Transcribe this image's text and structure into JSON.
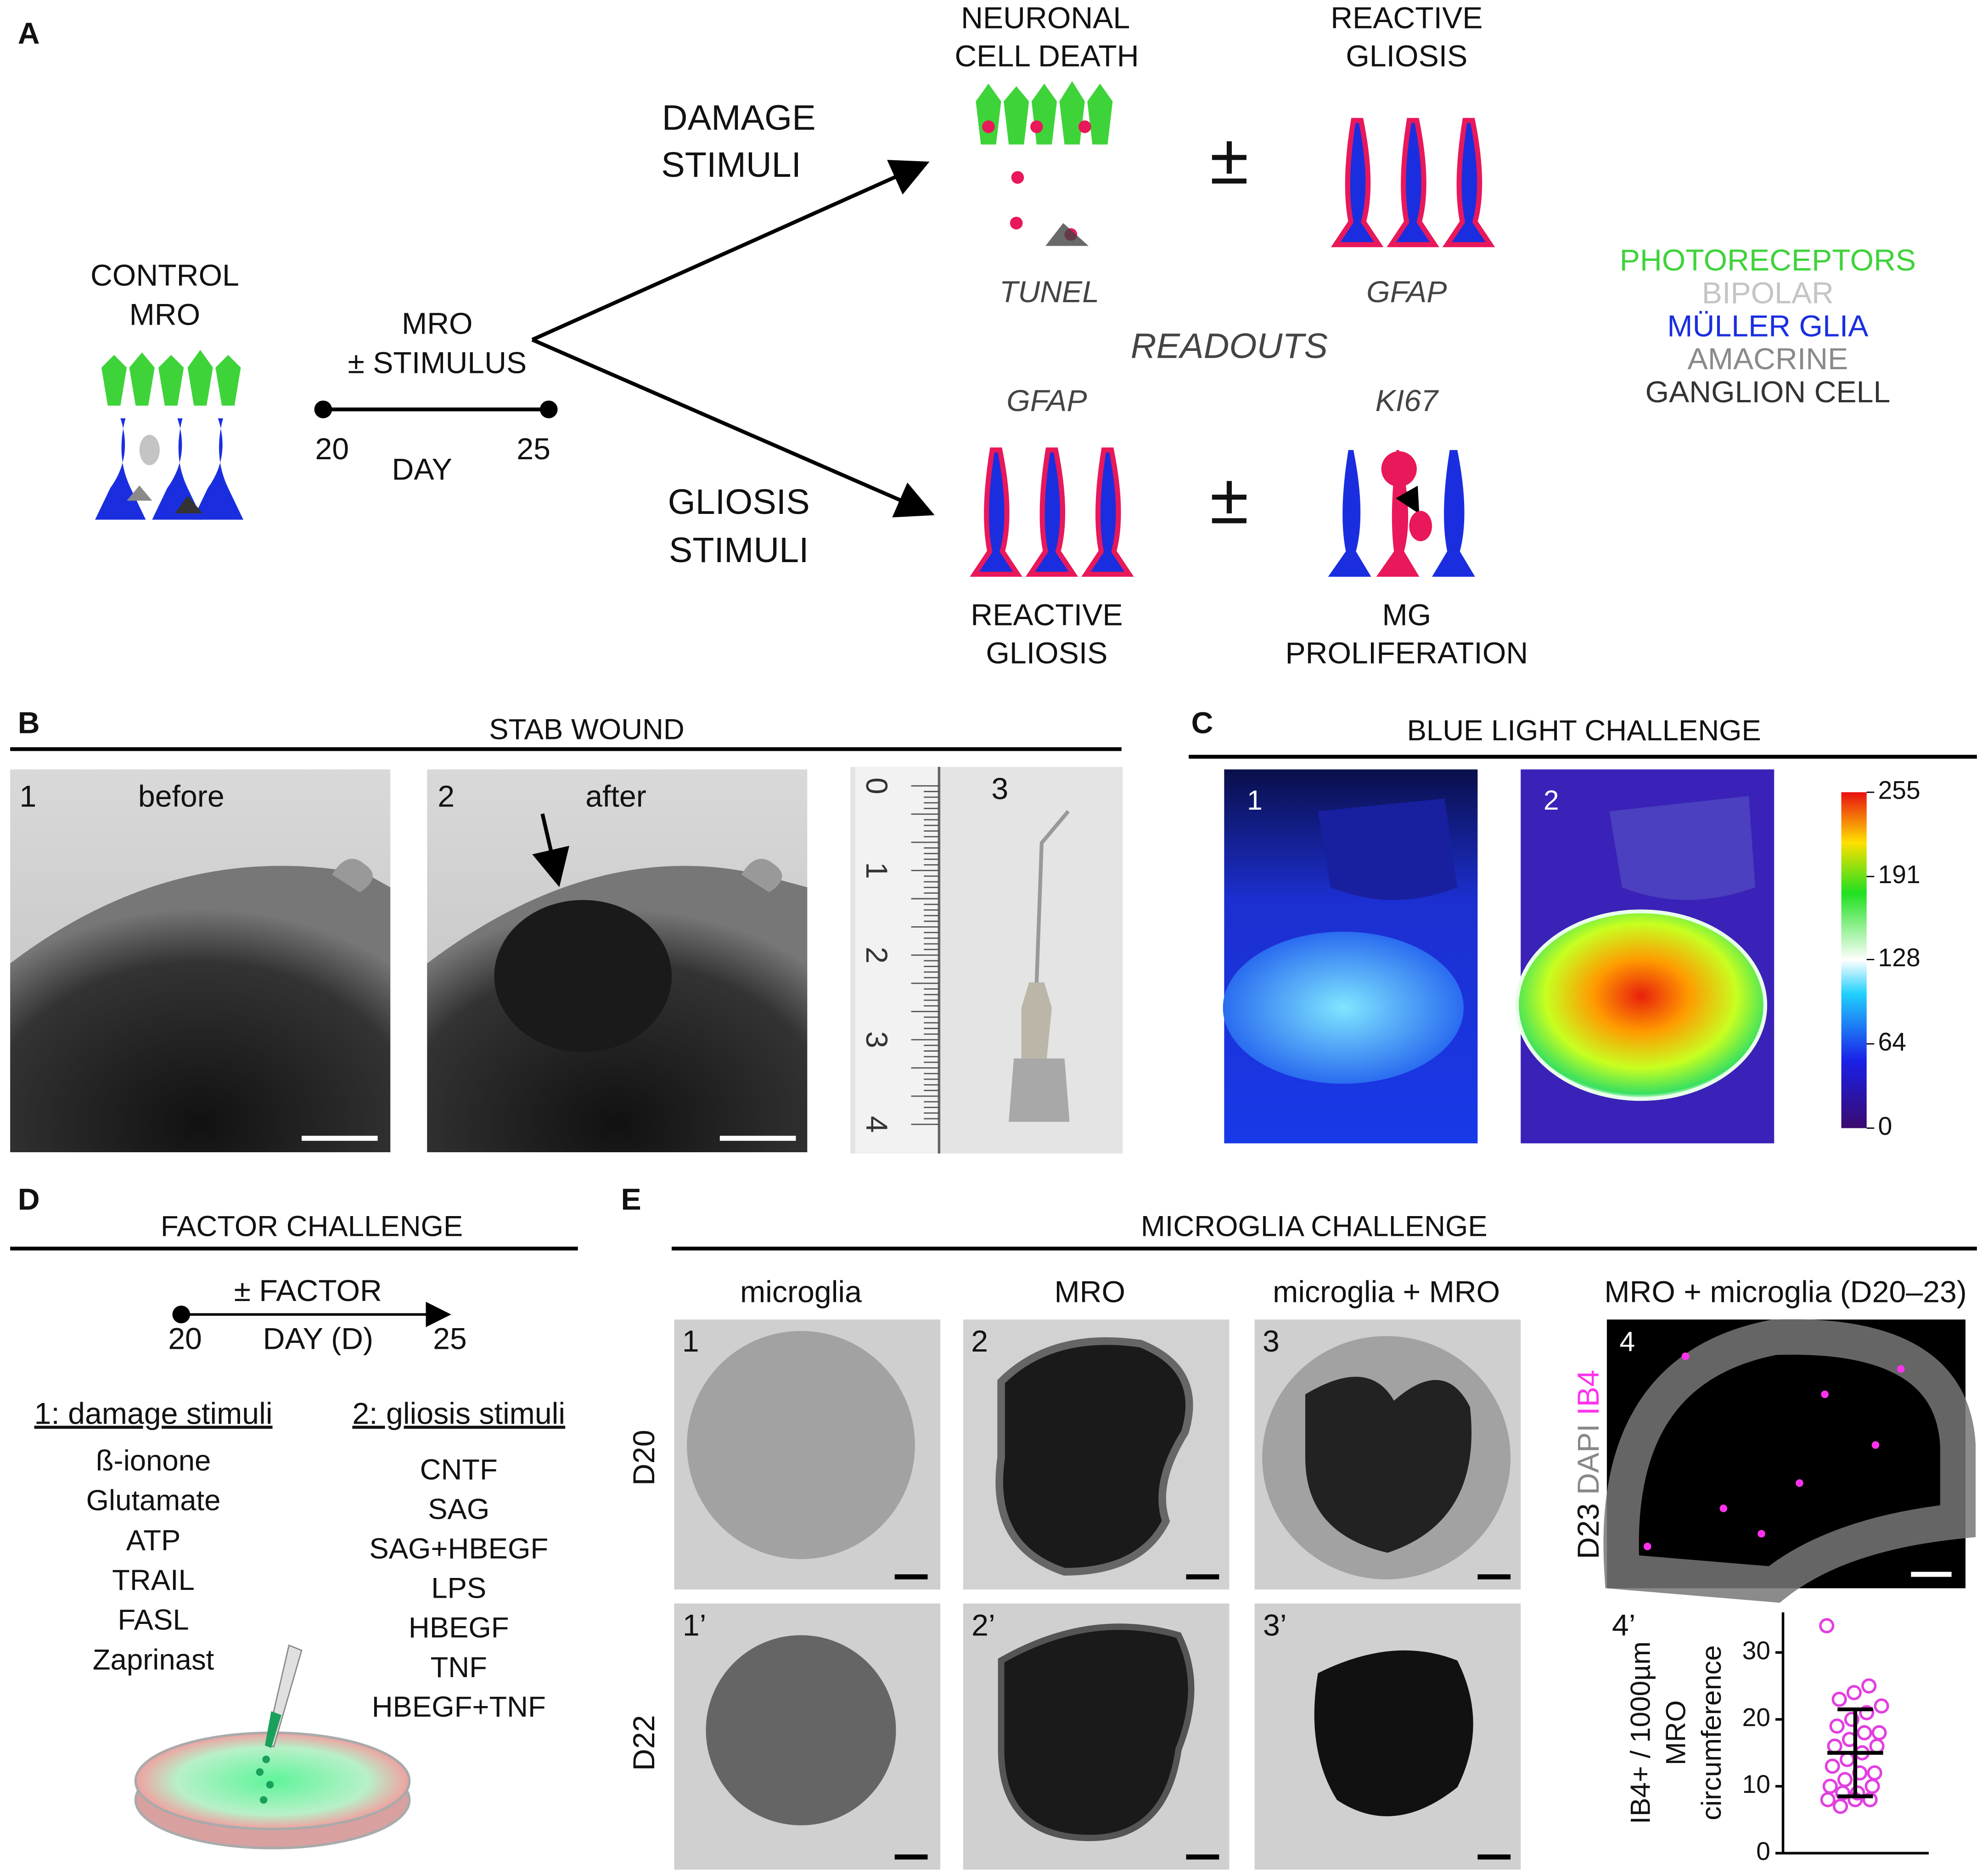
{
  "figure": {
    "A": {
      "label": "A",
      "control": [
        "CONTROL",
        "MRO"
      ],
      "timeline": {
        "title": [
          "MRO",
          "± STIMULUS"
        ],
        "start": "20",
        "end": "25",
        "unit": "DAY"
      },
      "damage": [
        "DAMAGE",
        "STIMULI"
      ],
      "gliosis": [
        "GLIOSIS",
        "STIMULI"
      ],
      "top_left": [
        "NEURONAL",
        "CELL DEATH"
      ],
      "top_right": [
        "REACTIVE",
        "GLIOSIS"
      ],
      "pm": "±",
      "top_left_readout": "TUNEL",
      "top_right_readout": "GFAP",
      "readouts": "READOUTS",
      "bottom_left_readout": "GFAP",
      "bottom_right_readout": "KI67",
      "bottom_left": [
        "REACTIVE",
        "GLIOSIS"
      ],
      "bottom_right": [
        "MG",
        "PROLIFERATION"
      ],
      "legend": [
        {
          "name": "PHOTORECEPTORS",
          "color": "#3fd33a"
        },
        {
          "name": "BIPOLAR",
          "color": "#c4c4c4"
        },
        {
          "name": "MÜLLER GLIA",
          "color": "#1a2ee0"
        },
        {
          "name": "AMACRINE",
          "color": "#8a8a8a"
        },
        {
          "name": "GANGLION CELL",
          "color": "#333333"
        }
      ]
    },
    "B": {
      "label": "B",
      "title": "STAB WOUND",
      "panels": [
        {
          "number": "1",
          "caption": "before"
        },
        {
          "number": "2",
          "caption": "after"
        },
        {
          "number": "3"
        }
      ],
      "ruler": [
        "0",
        "1",
        "2",
        "3",
        "4"
      ]
    },
    "C": {
      "label": "C",
      "title": "BLUE LIGHT CHALLENGE",
      "panels": [
        "1",
        "2"
      ],
      "colorbar": {
        "lim": [
          0,
          255
        ],
        "ticks": [
          0,
          64,
          128,
          191,
          255
        ]
      }
    },
    "D": {
      "label": "D",
      "title": "FACTOR CHALLENGE",
      "timeline": {
        "title": "± FACTOR",
        "start": "20",
        "unit": "DAY (D)",
        "end": "25"
      },
      "damage_title": "1: damage stimuli",
      "damage": [
        "ß-ionone",
        "Glutamate",
        "ATP",
        "TRAIL",
        "FASL",
        "Zaprinast"
      ],
      "gliosis_title": "2: gliosis stimuli",
      "gliosis": [
        "CNTF",
        "SAG",
        "SAG+HBEGF",
        "LPS",
        "HBEGF",
        "TNF",
        "HBEGF+TNF"
      ]
    },
    "E": {
      "label": "E",
      "title": "MICROGLIA CHALLENGE",
      "columns": [
        "microglia",
        "MRO",
        "microglia + MRO",
        "MRO + microglia (D20–23)"
      ],
      "rows": [
        "D20",
        "D22"
      ],
      "panels": [
        "1",
        "2",
        "3",
        "1’",
        "2’",
        "3’",
        "4"
      ],
      "stain": {
        "day": "D23",
        "dapi": "DAPI",
        "ib4": "IB4"
      }
    }
  },
  "chart_data": {
    "type": "scatter",
    "panel": "4’",
    "ylabel": [
      "IB4+ / 1000µm",
      "MRO",
      "circumference"
    ],
    "ylim": [
      0,
      36
    ],
    "yticks": [
      0,
      10,
      20,
      30
    ],
    "color": "#e23fe0",
    "values": [
      34,
      25,
      24,
      23,
      22,
      21,
      20,
      19,
      18,
      18,
      17,
      16,
      16,
      15,
      14,
      13,
      12,
      12,
      11,
      10,
      10,
      9,
      9,
      8,
      8,
      8,
      7
    ],
    "mean": 15,
    "error": 6.5
  }
}
